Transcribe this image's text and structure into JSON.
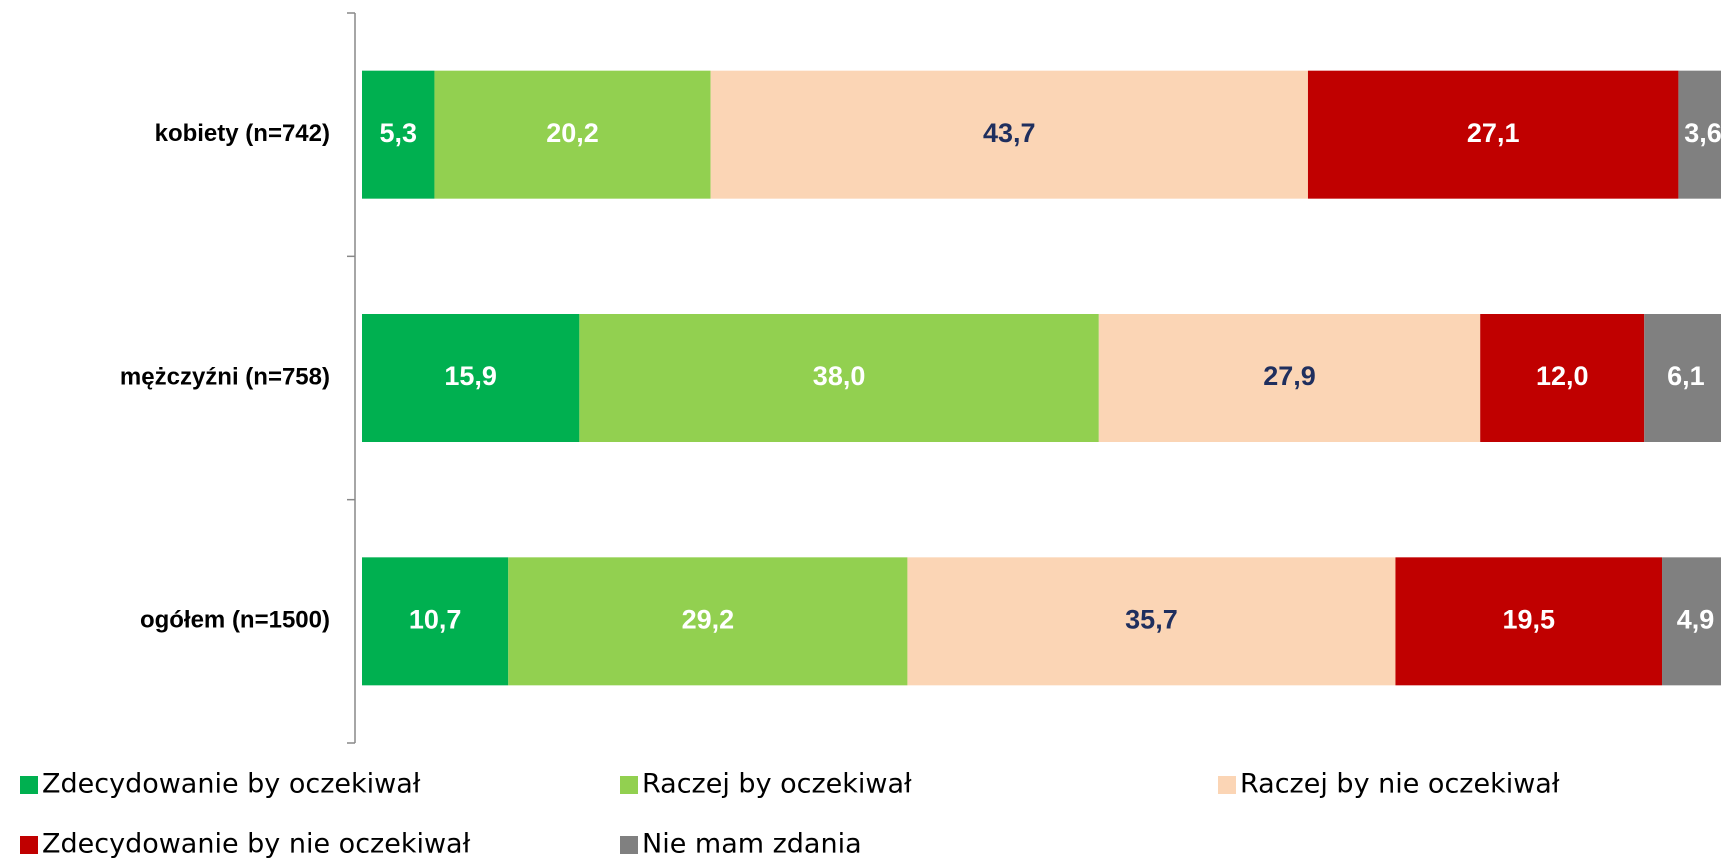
{
  "chart_data": {
    "type": "stacked-bar-horizontal",
    "categories": [
      "kobiety (n=742)",
      "mężczyźni (n=758)",
      "ogółem (n=1500)"
    ],
    "xlim": [
      0,
      100
    ],
    "series": [
      {
        "name": "Zdecydowanie by oczekiwał",
        "color": "#00b050",
        "label_color": "#ffffff",
        "values": [
          5.3,
          15.9,
          10.7
        ],
        "value_labels": [
          "5,3",
          "15,9",
          "10,7"
        ]
      },
      {
        "name": "Raczej by oczekiwał",
        "color": "#92d050",
        "label_color": "#ffffff",
        "values": [
          20.2,
          38.0,
          29.2
        ],
        "value_labels": [
          "20,2",
          "38,0",
          "29,2"
        ]
      },
      {
        "name": "Raczej by nie oczekiwał",
        "color": "#fbd5b5",
        "label_color": "#1f2f5e",
        "values": [
          43.7,
          27.9,
          35.7
        ],
        "value_labels": [
          "43,7",
          "27,9",
          "35,7"
        ]
      },
      {
        "name": "Zdecydowanie by nie oczekiwał",
        "color": "#c00000",
        "label_color": "#ffffff",
        "values": [
          27.1,
          12.0,
          19.5
        ],
        "value_labels": [
          "27,1",
          "12,0",
          "19,5"
        ]
      },
      {
        "name": "Nie mam zdania",
        "color": "#808080",
        "label_color": "#ffffff",
        "values": [
          3.6,
          6.1,
          4.9
        ],
        "value_labels": [
          "3,6",
          "6,1",
          "4,9"
        ]
      }
    ]
  }
}
